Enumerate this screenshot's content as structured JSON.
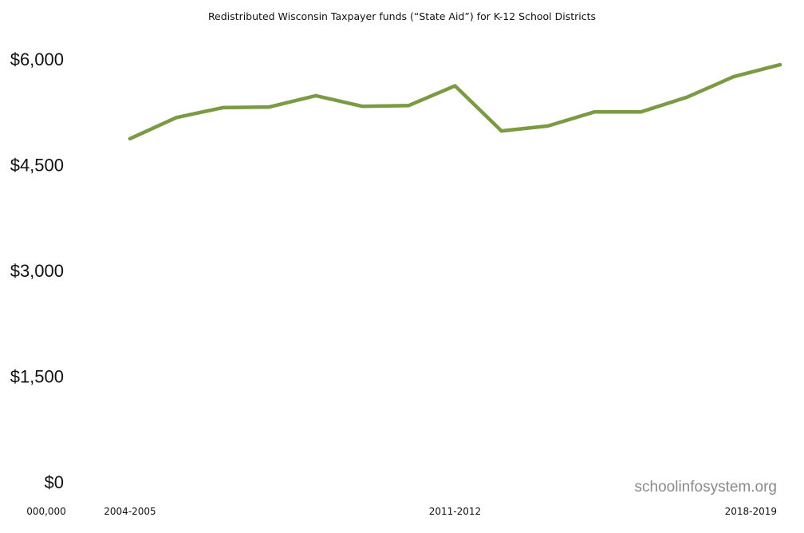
{
  "chart_data": {
    "type": "line",
    "title": "Redistributed Wisconsin Taxpayer funds (“State Aid”) for K-12 School Districts",
    "xlabel": "",
    "ylabel": "",
    "x_tick_labels": [
      "000,000",
      "2004-2005",
      "2011-2012",
      "2018-2019"
    ],
    "y_tick_labels": [
      "$0",
      "$1,500",
      "$3,000",
      "$4,500",
      "$6,000"
    ],
    "y_ticks": [
      0,
      1500,
      3000,
      4500,
      6000
    ],
    "ylim": [
      0,
      6000
    ],
    "grid": false,
    "legend": "none",
    "x": [
      "2004-2005",
      "2005-2006",
      "2006-2007",
      "2007-2008",
      "2008-2009",
      "2009-2010",
      "2010-2011",
      "2011-2012",
      "2012-2013",
      "2013-2014",
      "2014-2015",
      "2015-2016",
      "2016-2017",
      "2017-2018",
      "2018-2019"
    ],
    "series": [
      {
        "color": "#7a9a44",
        "values": [
          4870,
          5170,
          5310,
          5320,
          5480,
          5330,
          5340,
          5620,
          4980,
          5050,
          5250,
          5250,
          5460,
          5750,
          5920
        ]
      }
    ]
  },
  "watermark": "schoolinfosystem.org"
}
